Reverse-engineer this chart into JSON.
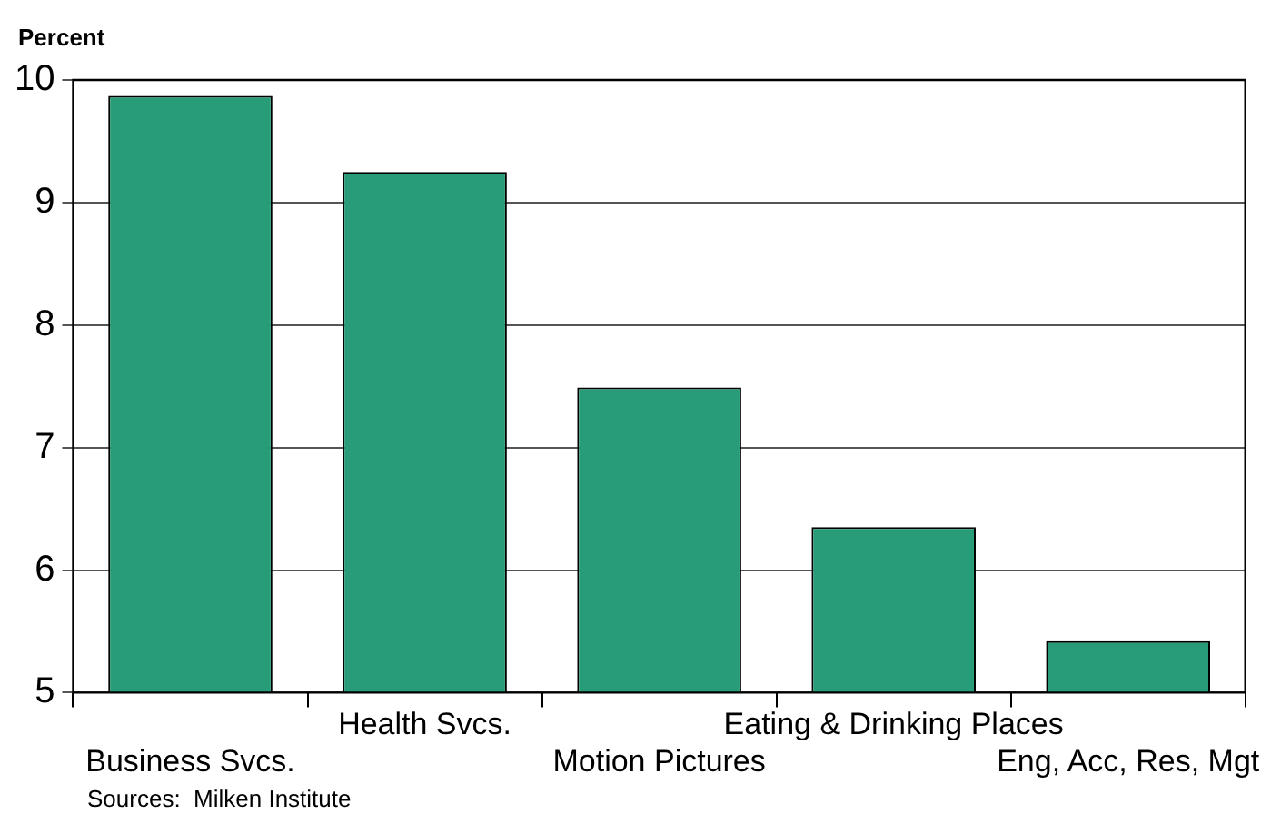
{
  "chart_data": {
    "type": "bar",
    "ylabel": "Percent",
    "categories": [
      "Business Svcs.",
      "Health Svcs.",
      "Motion Pictures",
      "Eating & Drinking Places",
      "Eng, Acc, Res, Mgt"
    ],
    "values": [
      9.87,
      9.25,
      7.49,
      6.35,
      5.42
    ],
    "color": "#289c78",
    "ylim": [
      5,
      10
    ],
    "yticks": [
      5,
      6,
      7,
      8,
      9,
      10
    ],
    "grid": "y",
    "annotations": [
      "Sources:  Milken Institute"
    ]
  }
}
